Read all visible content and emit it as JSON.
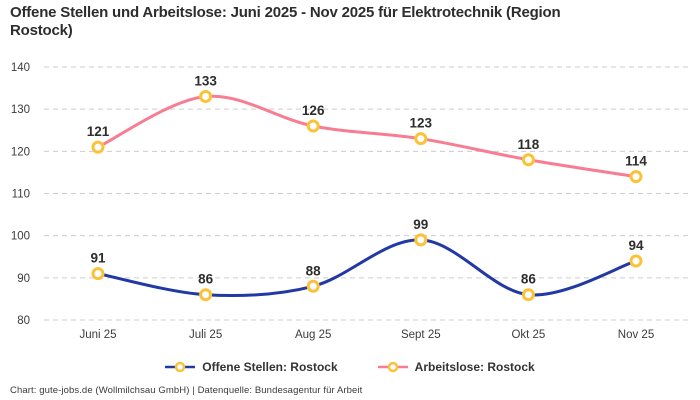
{
  "header": {
    "title_line1": "Offene Stellen und Arbeitslose: Juni 2025 - Nov 2025 für Elektrotechnik (Region",
    "title_line2": "Rostock)"
  },
  "footer": {
    "credit": "Chart: gute-jobs.de (Wollmilchsau GmbH) | Datenquelle: Bundesagentur für Arbeit"
  },
  "chart_data": {
    "type": "line",
    "title": "Offene Stellen und Arbeitslose: Juni 2025 - Nov 2025 für Elektrotechnik (Region Rostock)",
    "categories": [
      "Juni 25",
      "Juli 25",
      "Aug 25",
      "Sept 25",
      "Okt 25",
      "Nov 25"
    ],
    "series": [
      {
        "name": "Offene Stellen: Rostock",
        "color": "#2239a3",
        "values": [
          91,
          86,
          88,
          99,
          86,
          94
        ]
      },
      {
        "name": "Arbeitslose: Rostock",
        "color": "#f87d92",
        "values": [
          121,
          133,
          126,
          123,
          118,
          114
        ]
      }
    ],
    "ylim": [
      80,
      140
    ],
    "yticks": [
      80,
      90,
      100,
      110,
      120,
      130,
      140
    ],
    "grid": "horizontal-dashed",
    "grid_color": "#cccccc",
    "axis_label_color": "#3c3c3c",
    "data_label_color": "#2d2d2d",
    "marker_fill": "#ffffff",
    "marker_stroke": "#fcc237",
    "curve": "smooth",
    "legend_position": "bottom"
  }
}
